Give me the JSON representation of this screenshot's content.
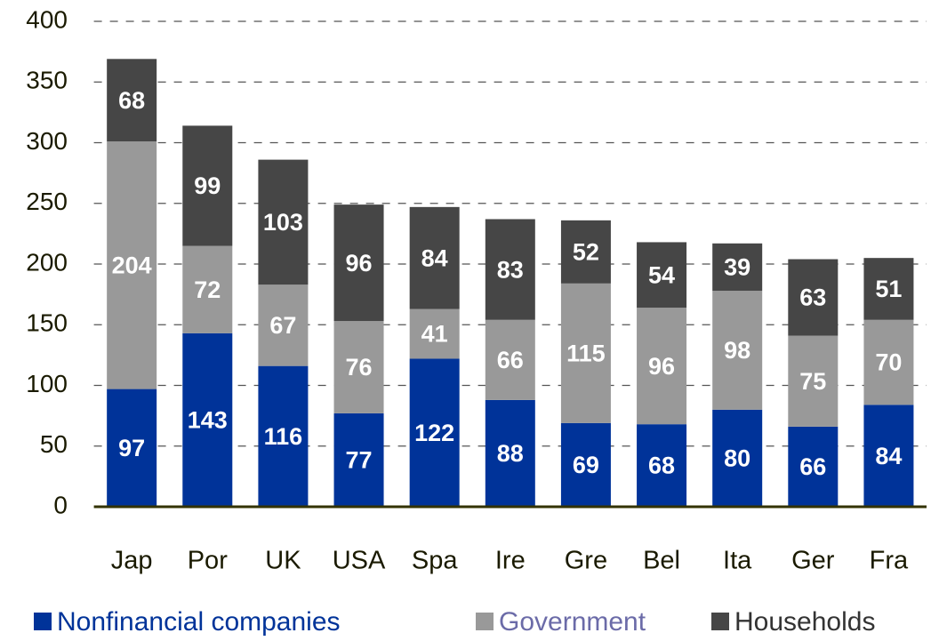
{
  "chart_data": {
    "type": "stacked_bar",
    "categories": [
      "Jap",
      "Por",
      "UK",
      "USA",
      "Spa",
      "Ire",
      "Gre",
      "Bel",
      "Ita",
      "Ger",
      "Fra"
    ],
    "series": [
      {
        "name": "Nonfinancial companies",
        "color": "#003399",
        "values": [
          97,
          143,
          116,
          77,
          122,
          88,
          69,
          68,
          80,
          66,
          84
        ]
      },
      {
        "name": "Government",
        "color": "#999999",
        "values": [
          204,
          72,
          67,
          76,
          41,
          66,
          115,
          96,
          98,
          75,
          70
        ]
      },
      {
        "name": "Households",
        "color": "#464646",
        "values": [
          68,
          99,
          103,
          96,
          84,
          83,
          52,
          54,
          39,
          63,
          51
        ]
      }
    ],
    "ylim": [
      0,
      400
    ],
    "yticks": [
      0,
      50,
      100,
      150,
      200,
      250,
      300,
      350,
      400
    ],
    "grid": true
  }
}
